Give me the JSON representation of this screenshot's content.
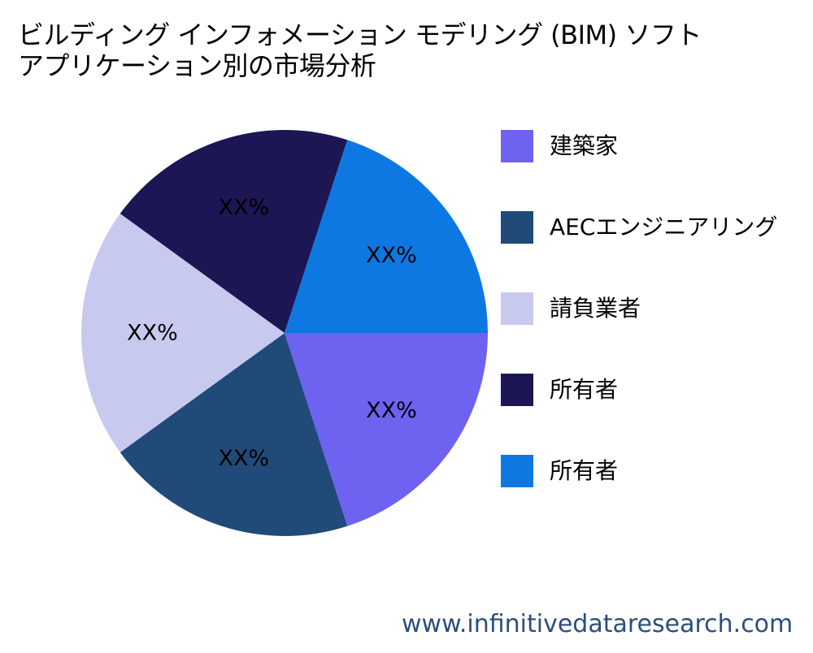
{
  "header": {
    "title": "ビルディング インフォメーション モデリング (BIM) ソフト\nアプリケーション別の市場分析"
  },
  "footer": {
    "website": "www.infinitivedataresearch.com"
  },
  "legend": {
    "items": [
      {
        "label": "建築家",
        "color": "#6e62f0"
      },
      {
        "label": "AECエンジニアリング",
        "color": "#204a78"
      },
      {
        "label": "請負業者",
        "color": "#c8c9ef"
      },
      {
        "label": "所有者",
        "color": "#1c1654"
      },
      {
        "label": "所有者",
        "color": "#0e78e2"
      }
    ]
  },
  "chart_data": {
    "type": "pie",
    "title": "ビルディング インフォメーション モデリング (BIM) ソフト アプリケーション別の市場分析",
    "categories": [
      "建築家",
      "AECエンジニアリング",
      "請負業者",
      "所有者",
      "所有者"
    ],
    "values": [
      20,
      20,
      20,
      20,
      20
    ],
    "data_labels": [
      "XX%",
      "XX%",
      "XX%",
      "XX%",
      "XX%"
    ],
    "colors": [
      "#6e62f0",
      "#204a78",
      "#c8c9ef",
      "#1c1654",
      "#0e78e2"
    ],
    "start_angle_deg": 0,
    "direction": "clockwise",
    "legend_position": "right",
    "center": [
      350,
      410
    ],
    "radius": 250
  }
}
